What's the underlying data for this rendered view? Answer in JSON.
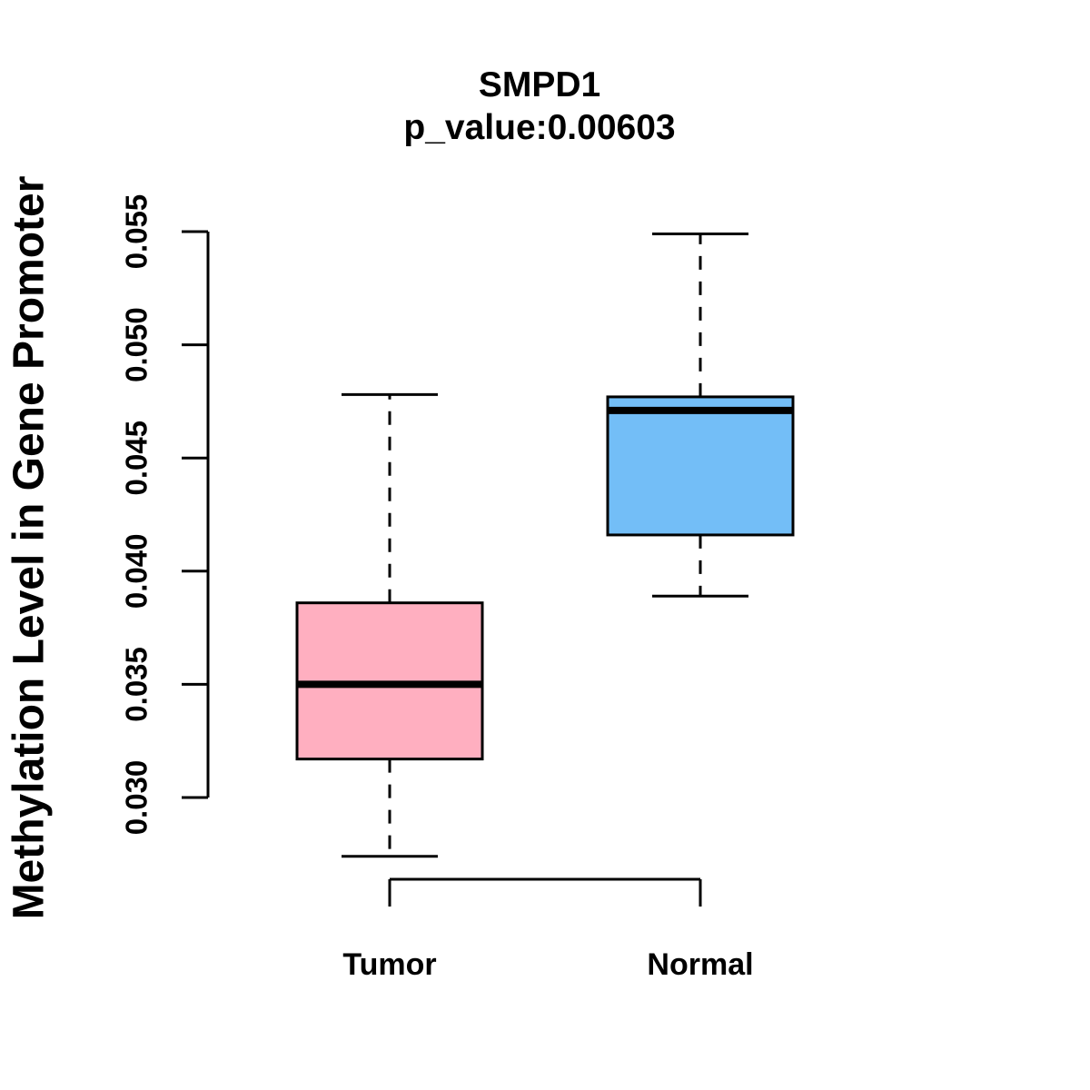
{
  "figure": {
    "background": "#FFFFFF",
    "text_color": "#000000"
  },
  "chart_data": {
    "type": "boxplot",
    "title": "SMPD1",
    "subtitle": "p_value:0.00603",
    "p_value": 0.00603,
    "ylabel": "Methylation Level in Gene Promoter",
    "xlabel": "",
    "categories": [
      "Tumor",
      "Normal"
    ],
    "yticks": [
      0.03,
      0.035,
      0.04,
      0.045,
      0.05,
      0.055
    ],
    "ylim": [
      0.03,
      0.055
    ],
    "grid": false,
    "legend": "none",
    "orientation": "vertical",
    "whisker_style": "dashed",
    "stroke_color": "#000000",
    "series": [
      {
        "name": "Tumor",
        "fill_color": "#FFAFC0",
        "min": 0.0274,
        "q1": 0.0317,
        "median": 0.035,
        "q3": 0.0386,
        "max": 0.0478
      },
      {
        "name": "Normal",
        "fill_color": "#73BEF7",
        "min": 0.0389,
        "q1": 0.0416,
        "median": 0.0471,
        "q3": 0.0477,
        "max": 0.0549
      }
    ]
  }
}
